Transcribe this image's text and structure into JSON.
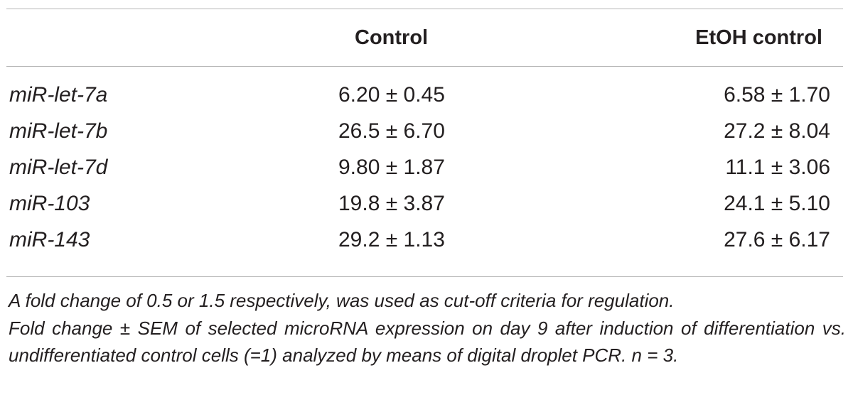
{
  "table": {
    "headers": [
      "",
      "Control",
      "EtOH control"
    ],
    "rows": [
      {
        "name": "miR-let-7a",
        "control": "6.20 ± 0.45",
        "etoh": "6.58 ± 1.70"
      },
      {
        "name": "miR-let-7b",
        "control": "26.5 ± 6.70",
        "etoh": "27.2 ± 8.04"
      },
      {
        "name": "miR-let-7d",
        "control": "9.80 ± 1.87",
        "etoh": "11.1 ± 3.06"
      },
      {
        "name": "miR-103",
        "control": "19.8 ± 3.87",
        "etoh": "24.1 ± 5.10"
      },
      {
        "name": "miR-143",
        "control": "29.2 ± 1.13",
        "etoh": "27.6 ± 6.17"
      }
    ]
  },
  "footnote": {
    "line1": "A fold change of 0.5 or 1.5 respectively, was used as cut-off criteria for regulation.",
    "line2": "Fold change ± SEM of selected microRNA expression on day 9 after induction of differentiation vs. undifferentiated control cells (=1) analyzed by means of digital droplet PCR. n = 3."
  }
}
